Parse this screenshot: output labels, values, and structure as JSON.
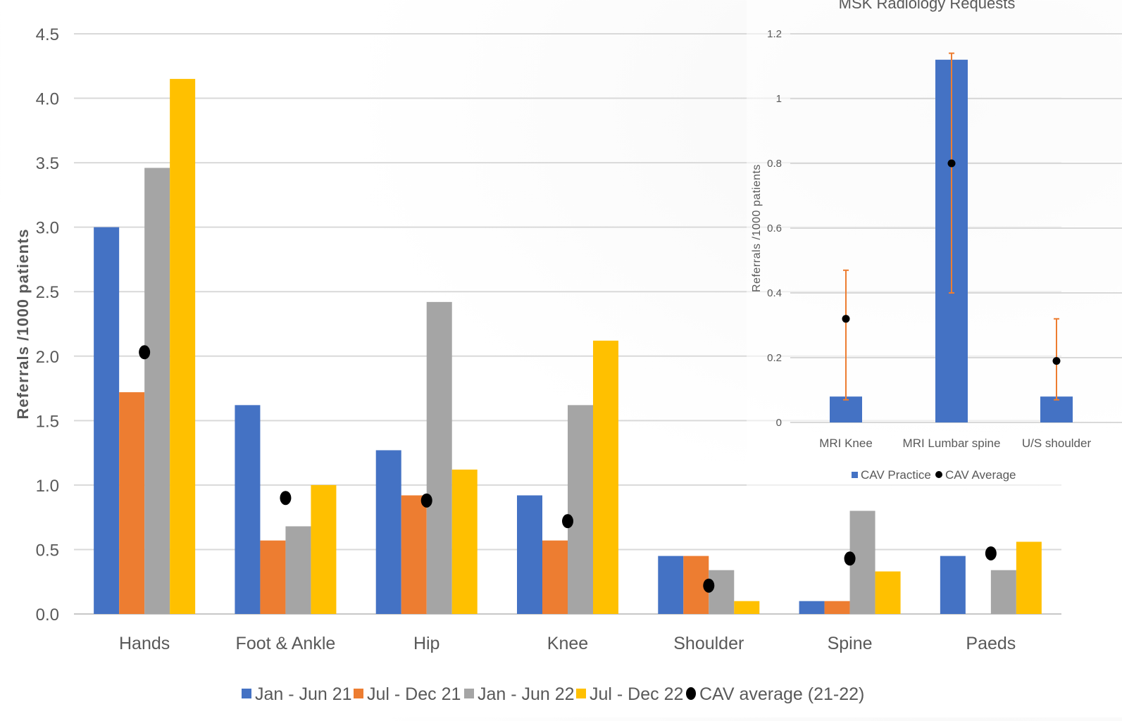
{
  "chart_data": [
    {
      "type": "bar",
      "title": "",
      "xlabel": "",
      "ylabel": "Referrals /1000 patients",
      "ylim": [
        0,
        4.5
      ],
      "yticks": [
        "0.0",
        "0.5",
        "1.0",
        "1.5",
        "2.0",
        "2.5",
        "3.0",
        "3.5",
        "4.0",
        "4.5"
      ],
      "grid": true,
      "legend_position": "bottom",
      "categories": [
        "Hands",
        "Foot & Ankle",
        "Hip",
        "Knee",
        "Shoulder",
        "Spine",
        "Paeds"
      ],
      "series": [
        {
          "name": "Jan - Jun 21",
          "color": "#4472C4",
          "values": [
            3.0,
            1.62,
            1.27,
            0.92,
            0.45,
            0.1,
            0.45
          ]
        },
        {
          "name": "Jul - Dec 21",
          "color": "#ED7D31",
          "values": [
            1.72,
            0.57,
            0.92,
            0.57,
            0.45,
            0.1,
            0.0
          ]
        },
        {
          "name": "Jan - Jun 22",
          "color": "#A5A5A5",
          "values": [
            3.46,
            0.68,
            2.42,
            1.62,
            0.34,
            0.8,
            0.34
          ]
        },
        {
          "name": "Jul - Dec 22",
          "color": "#FFC000",
          "values": [
            4.15,
            1.0,
            1.12,
            2.12,
            0.1,
            0.33,
            0.56
          ]
        }
      ],
      "markers": {
        "name": "CAV average (21-22)",
        "color": "#000000",
        "values": [
          2.03,
          0.9,
          0.88,
          0.72,
          0.22,
          0.43,
          0.47
        ]
      }
    },
    {
      "type": "bar",
      "title": "MSK Radiology Requests",
      "xlabel": "",
      "ylabel": "Referrals /1000 patients",
      "ylim": [
        0,
        1.2
      ],
      "yticks": [
        "0",
        "0.2",
        "0.4",
        "0.6",
        "0.8",
        "1",
        "1.2"
      ],
      "grid": true,
      "legend_position": "bottom",
      "categories": [
        "MRI Knee",
        "MRI Lumbar spine",
        "U/S shoulder"
      ],
      "series": [
        {
          "name": "CAV Practice",
          "color": "#4472C4",
          "values": [
            0.08,
            1.12,
            0.08
          ]
        }
      ],
      "markers": {
        "name": "CAV Average",
        "color": "#000000",
        "values": [
          0.32,
          0.8,
          0.19
        ]
      },
      "error_bars": {
        "color": "#ED7D31",
        "low": [
          0.07,
          0.4,
          0.07
        ],
        "high": [
          0.47,
          1.14,
          0.32
        ]
      }
    }
  ]
}
